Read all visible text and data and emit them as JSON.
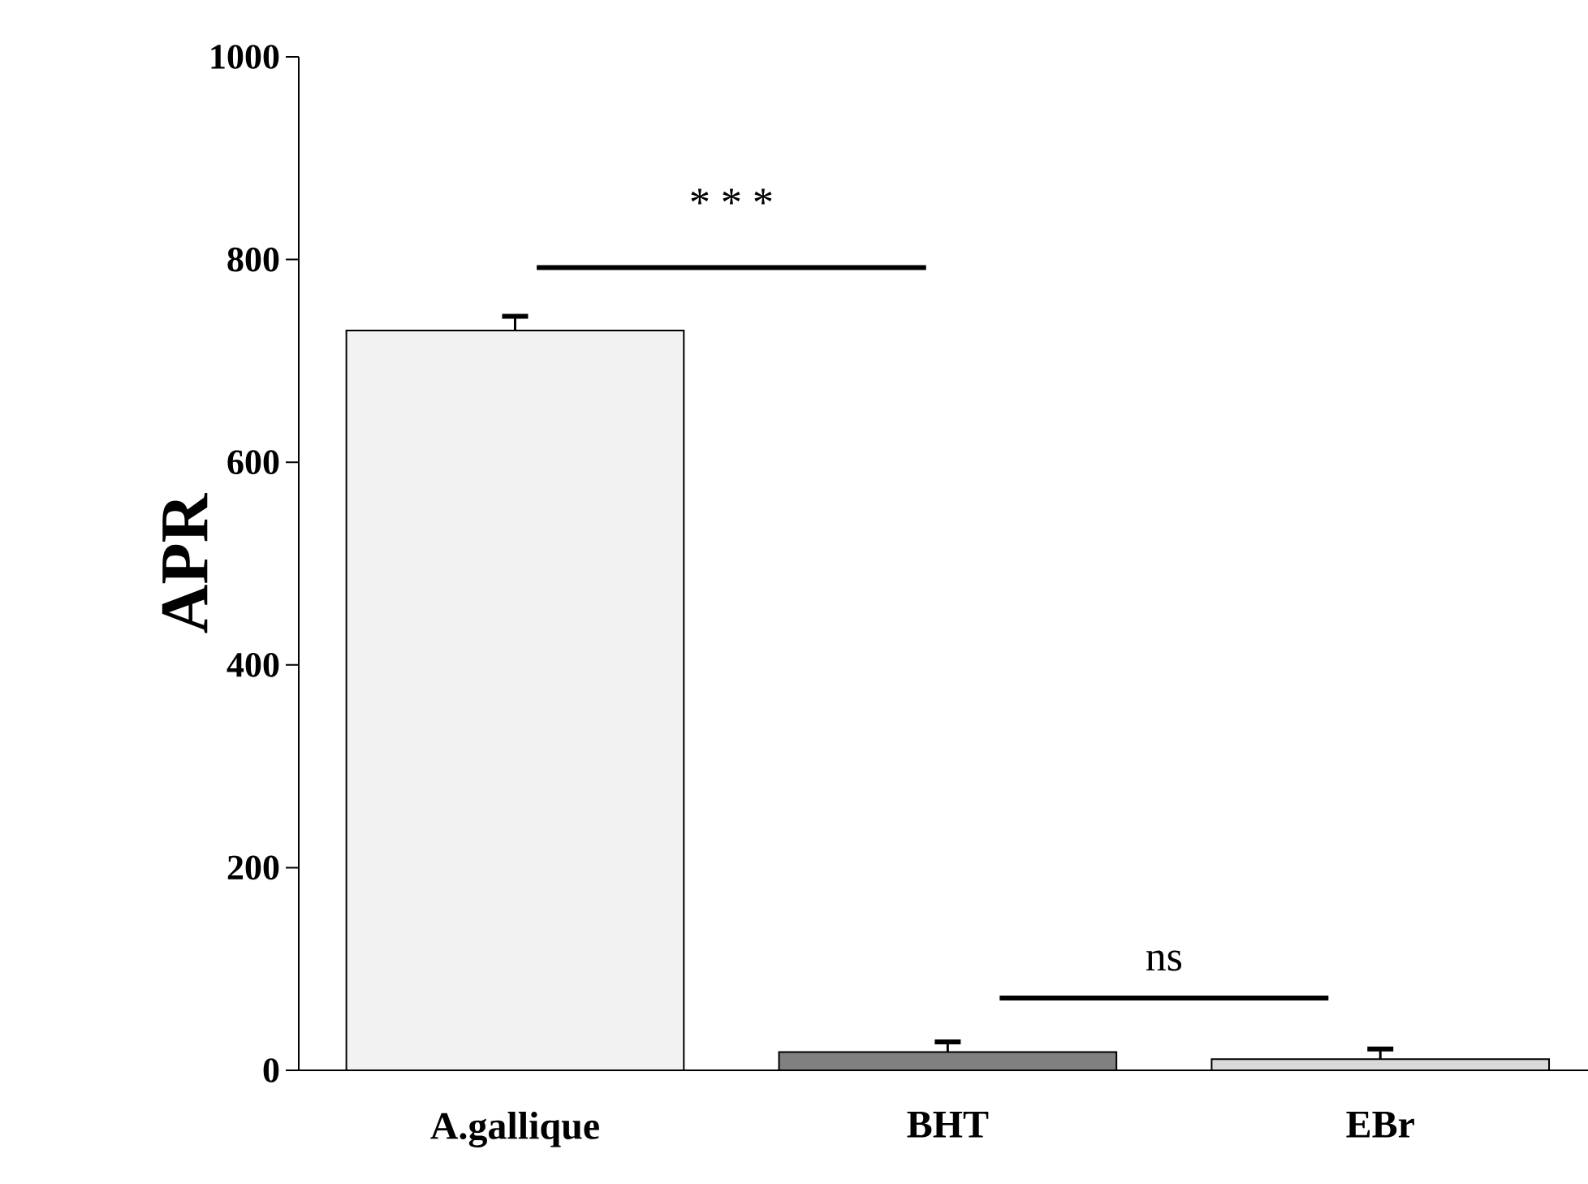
{
  "chart_data": {
    "type": "bar",
    "ylabel": "APR",
    "categories": [
      "A.gallique",
      "BHT",
      "EBr"
    ],
    "values": [
      730,
      18,
      11
    ],
    "errors": [
      14,
      10,
      10
    ],
    "colors": [
      "#f2f2f2",
      "#808080",
      "#d9d9d9"
    ],
    "ylim": [
      0,
      1000
    ],
    "yticks": [
      0,
      200,
      400,
      600,
      800,
      1000
    ],
    "grid": false,
    "annotations": [
      "* * *",
      "ns"
    ]
  }
}
